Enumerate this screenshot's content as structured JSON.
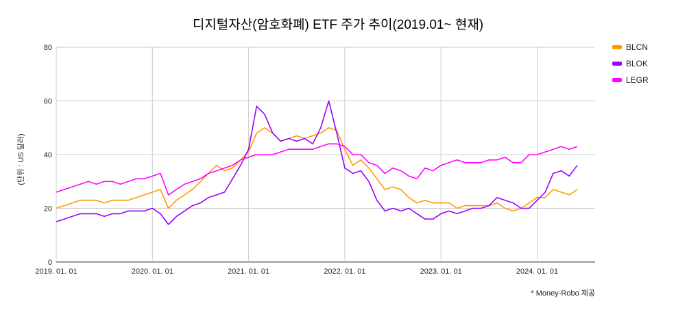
{
  "chart_data": {
    "type": "line",
    "title": "디지털자산(암호화폐) ETF 주가 추이(2019.01~ 현재)",
    "ylabel": "(단위 : US 달러)",
    "xlabel": "",
    "ylim": [
      0,
      80
    ],
    "yticks": [
      "0",
      "20",
      "40",
      "60",
      "80"
    ],
    "xticks": [
      "2019. 01. 01",
      "2020. 01. 01",
      "2021. 01. 01",
      "2022. 01. 01",
      "2023. 01. 01",
      "2024. 01. 01"
    ],
    "x_start": "2019-01",
    "x_step": "monthly",
    "grid": true,
    "legend": "right",
    "footnote": "* Money-Robo 제공",
    "series": [
      {
        "name": "BLCN",
        "color": "#ff9900",
        "values": [
          20,
          21,
          22,
          23,
          23,
          23,
          22,
          23,
          23,
          23,
          24,
          25,
          26,
          27,
          20,
          23,
          25,
          27,
          30,
          33,
          36,
          34,
          35,
          38,
          41,
          48,
          50,
          48,
          45,
          46,
          47,
          46,
          47,
          48,
          50,
          49,
          42,
          36,
          38,
          35,
          31,
          27,
          28,
          27,
          24,
          22,
          23,
          22,
          22,
          22,
          20,
          21,
          21,
          21,
          21,
          22,
          20,
          19,
          20,
          22,
          24,
          24,
          27,
          26,
          25,
          27
        ]
      },
      {
        "name": "BLOK",
        "color": "#9900ff",
        "values": [
          15,
          16,
          17,
          18,
          18,
          18,
          17,
          18,
          18,
          19,
          19,
          19,
          20,
          18,
          14,
          17,
          19,
          21,
          22,
          24,
          25,
          26,
          31,
          36,
          42,
          58,
          55,
          48,
          45,
          46,
          45,
          46,
          44,
          50,
          60,
          48,
          35,
          33,
          34,
          30,
          23,
          19,
          20,
          19,
          20,
          18,
          16,
          16,
          18,
          19,
          18,
          19,
          20,
          20,
          21,
          24,
          23,
          22,
          20,
          20,
          23,
          26,
          33,
          34,
          32,
          36
        ]
      },
      {
        "name": "LEGR",
        "color": "#ff00ff",
        "values": [
          26,
          27,
          28,
          29,
          30,
          29,
          30,
          30,
          29,
          30,
          31,
          31,
          32,
          33,
          25,
          27,
          29,
          30,
          31,
          33,
          34,
          35,
          36,
          38,
          39,
          40,
          40,
          40,
          41,
          42,
          42,
          42,
          42,
          43,
          44,
          44,
          43,
          40,
          40,
          37,
          36,
          33,
          35,
          34,
          32,
          31,
          35,
          34,
          36,
          37,
          38,
          37,
          37,
          37,
          38,
          38,
          39,
          37,
          37,
          40,
          40,
          41,
          42,
          43,
          42,
          43
        ]
      }
    ]
  }
}
